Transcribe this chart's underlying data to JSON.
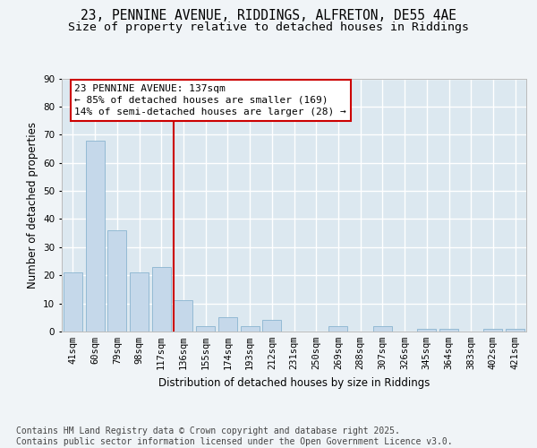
{
  "title_line1": "23, PENNINE AVENUE, RIDDINGS, ALFRETON, DE55 4AE",
  "title_line2": "Size of property relative to detached houses in Riddings",
  "xlabel": "Distribution of detached houses by size in Riddings",
  "ylabel": "Number of detached properties",
  "categories": [
    "41sqm",
    "60sqm",
    "79sqm",
    "98sqm",
    "117sqm",
    "136sqm",
    "155sqm",
    "174sqm",
    "193sqm",
    "212sqm",
    "231sqm",
    "250sqm",
    "269sqm",
    "288sqm",
    "307sqm",
    "326sqm",
    "345sqm",
    "364sqm",
    "383sqm",
    "402sqm",
    "421sqm"
  ],
  "values": [
    21,
    68,
    36,
    21,
    23,
    11,
    2,
    5,
    2,
    4,
    0,
    0,
    2,
    0,
    2,
    0,
    1,
    1,
    0,
    1,
    1
  ],
  "bar_color": "#c5d8ea",
  "bar_edge_color": "#8ab4d0",
  "background_color": "#dce8f0",
  "grid_color": "#ffffff",
  "vline_bin_index": 5,
  "vline_color": "#cc0000",
  "annotation_line1": "23 PENNINE AVENUE: 137sqm",
  "annotation_line2": "← 85% of detached houses are smaller (169)",
  "annotation_line3": "14% of semi-detached houses are larger (28) →",
  "annotation_box_edgecolor": "#cc0000",
  "ylim": [
    0,
    90
  ],
  "yticks": [
    0,
    10,
    20,
    30,
    40,
    50,
    60,
    70,
    80,
    90
  ],
  "footnote": "Contains HM Land Registry data © Crown copyright and database right 2025.\nContains public sector information licensed under the Open Government Licence v3.0.",
  "title_fontsize": 10.5,
  "subtitle_fontsize": 9.5,
  "axis_label_fontsize": 8.5,
  "tick_fontsize": 7.5,
  "annotation_fontsize": 8,
  "footnote_fontsize": 7
}
